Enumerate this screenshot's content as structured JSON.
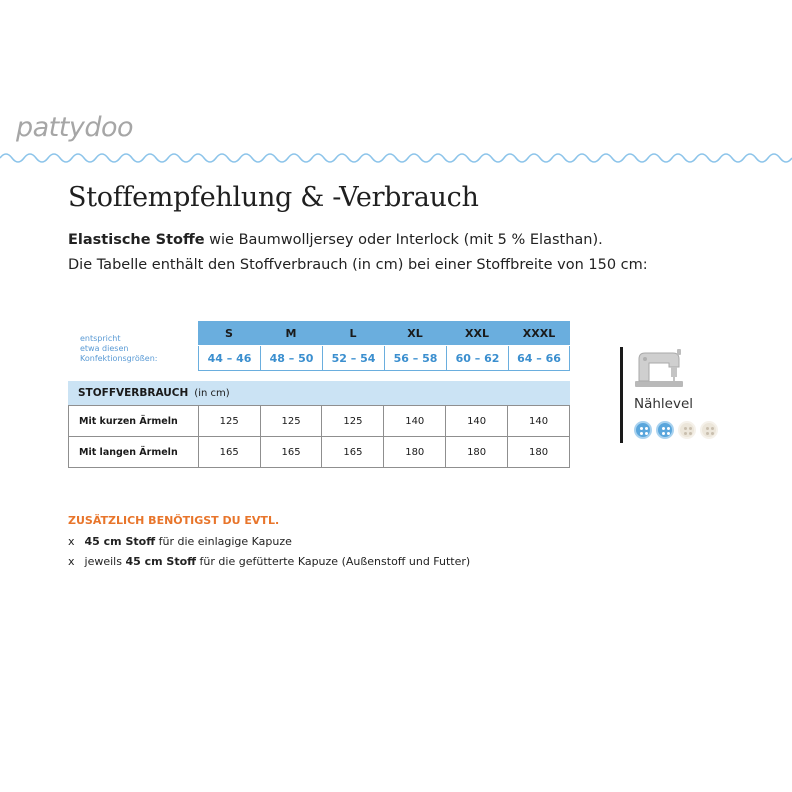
{
  "brand": {
    "logo_text": "pattydoo"
  },
  "title": "Stoffempfehlung & -Verbrauch",
  "intro": {
    "line1_bold": "Elastische Stoffe",
    "line1_rest": " wie Baumwolljersey oder Interlock (mit 5 % Elasthan).",
    "line2": "Die Tabelle enthält den Stoffverbrauch (in cm) bei einer Stoffbreite von 150 cm:"
  },
  "size_table": {
    "label_lines": [
      "entspricht",
      "etwa diesen",
      "Konfektionsgrößen:"
    ],
    "sizes": [
      "S",
      "M",
      "L",
      "XL",
      "XXL",
      "XXXL"
    ],
    "konfektion": [
      "44 – 46",
      "48 – 50",
      "52 – 54",
      "56 – 58",
      "60 – 62",
      "64 – 66"
    ]
  },
  "verbrauch": {
    "title": "STOFFVERBRAUCH",
    "unit": "(in cm)",
    "rows": [
      {
        "label": "Mit kurzen Ärmeln",
        "values": [
          "125",
          "125",
          "125",
          "140",
          "140",
          "140"
        ]
      },
      {
        "label": "Mit langen Ärmeln",
        "values": [
          "165",
          "165",
          "165",
          "180",
          "180",
          "180"
        ]
      }
    ]
  },
  "naehlevel": {
    "label": "Nählevel",
    "level": 2,
    "max": 4,
    "icon": "sewing-machine-icon",
    "active_color": "#5aa6dc",
    "inactive_color": "#ece6da"
  },
  "extras": {
    "heading": "ZUSÄTZLICH BENÖTIGST DU EVTL.",
    "items": [
      {
        "marker": "x",
        "pre": "",
        "bold": "45 cm Stoff",
        "rest": " für die einlagige Kapuze"
      },
      {
        "marker": "x",
        "pre": "jeweils ",
        "bold": "45 cm Stoff",
        "rest": " für die gefütterte Kapuze (Außenstoff und Futter)"
      }
    ]
  },
  "colors": {
    "accent_blue": "#6aaede",
    "light_blue": "#cbe3f4",
    "orange": "#e8752b",
    "logo_gray": "#a6a6a6"
  }
}
